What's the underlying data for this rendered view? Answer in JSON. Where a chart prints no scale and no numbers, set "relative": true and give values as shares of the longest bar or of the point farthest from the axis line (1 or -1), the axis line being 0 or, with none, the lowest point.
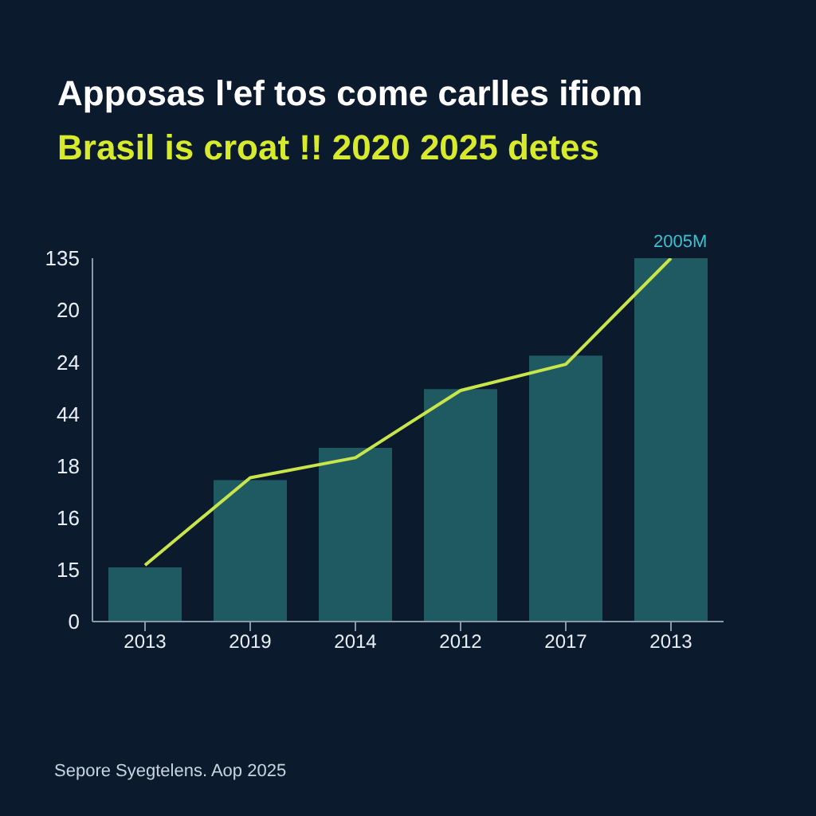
{
  "chart_data": {
    "type": "bar",
    "title": "Apposas l'ef tos come carlles ifiom",
    "subtitle": "Brasil is croat !! 2020 2025 detes",
    "categories": [
      "2013",
      "2019",
      "2014",
      "2012",
      "2017",
      "2013"
    ],
    "series": [
      {
        "color": "#1f5a63",
        "values": [
          0.149,
          0.389,
          0.478,
          0.64,
          0.732,
          1
        ]
      },
      {
        "type": "line",
        "color": "#c8e64a",
        "values": [
          0.155,
          0.396,
          0.451,
          0.636,
          0.708,
          1
        ]
      }
    ],
    "relative": true,
    "annotations": [
      "2005M",
      "Sepore Syegtelens. Aop 2025",
      "135",
      "20",
      "24",
      "44",
      "18",
      "16",
      "15",
      "0"
    ]
  }
}
